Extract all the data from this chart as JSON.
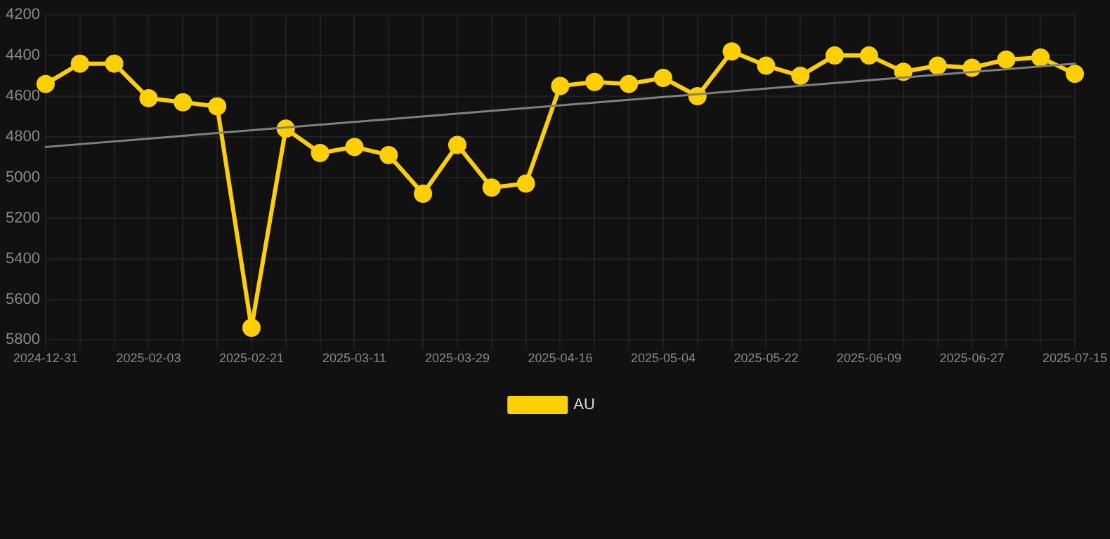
{
  "chart_data": {
    "type": "line",
    "categories": [
      "2024-12-31",
      null,
      null,
      "2025-02-03",
      null,
      null,
      "2025-02-21",
      null,
      null,
      "2025-03-11",
      null,
      null,
      "2025-03-29",
      null,
      null,
      "2025-04-16",
      null,
      null,
      "2025-05-04",
      null,
      null,
      "2025-05-22",
      null,
      null,
      "2025-06-09",
      null,
      null,
      "2025-06-27",
      null,
      null,
      "2025-07-15"
    ],
    "series": [
      {
        "name": "AU",
        "color": "#ffd000",
        "values": [
          4540,
          4440,
          4440,
          4610,
          4630,
          4650,
          5740,
          4760,
          4880,
          4850,
          4890,
          5080,
          4840,
          5050,
          5030,
          4550,
          4530,
          4540,
          4510,
          4600,
          4380,
          4450,
          4500,
          4400,
          4400,
          4480,
          4450,
          4460,
          4420,
          4410,
          4490
        ]
      },
      {
        "type": "line",
        "color": "#808080",
        "marker": "none",
        "line_style": "solid",
        "values": [
          4850,
          null,
          null,
          null,
          null,
          null,
          null,
          null,
          null,
          null,
          null,
          null,
          null,
          null,
          null,
          null,
          null,
          null,
          null,
          null,
          null,
          null,
          null,
          null,
          null,
          null,
          null,
          null,
          null,
          null,
          4440
        ]
      }
    ],
    "ylim": [
      5800,
      4200
    ],
    "yticks": [
      4200,
      4400,
      4600,
      4800,
      5000,
      5200,
      5400,
      5600,
      5800
    ],
    "grid": true,
    "legend": "bottom",
    "marker": "circle"
  }
}
